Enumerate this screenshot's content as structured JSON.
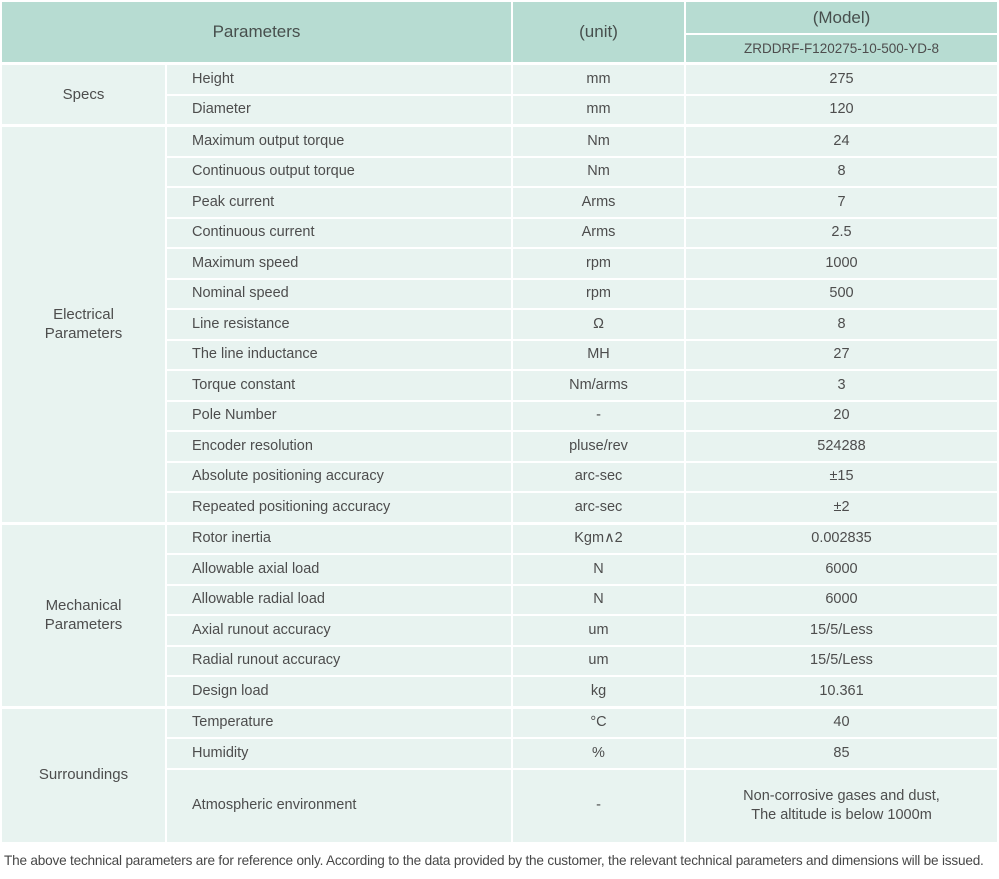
{
  "table": {
    "header": {
      "parameters_label": "Parameters",
      "unit_label": "(unit)",
      "model_label": "(Model)",
      "model_value": "ZRDDRF-F120275-10-500-YD-8"
    },
    "sections": [
      {
        "category": "Specs",
        "rows": [
          {
            "name": "Height",
            "unit": "mm",
            "value": "275"
          },
          {
            "name": "Diameter",
            "unit": "mm",
            "value": "120"
          }
        ]
      },
      {
        "category": "Electrical Parameters",
        "rows": [
          {
            "name": "Maximum output torque",
            "unit": "Nm",
            "value": "24"
          },
          {
            "name": "Continuous output torque",
            "unit": "Nm",
            "value": "8"
          },
          {
            "name": "Peak current",
            "unit": "Arms",
            "value": "7"
          },
          {
            "name": "Continuous current",
            "unit": "Arms",
            "value": "2.5"
          },
          {
            "name": "Maximum speed",
            "unit": "rpm",
            "value": "1000"
          },
          {
            "name": "Nominal speed",
            "unit": "rpm",
            "value": "500"
          },
          {
            "name": "Line resistance",
            "unit": "Ω",
            "value": "8"
          },
          {
            "name": "The line inductance",
            "unit": "MH",
            "value": "27"
          },
          {
            "name": "Torque constant",
            "unit": "Nm/arms",
            "value": "3"
          },
          {
            "name": "Pole Number",
            "unit": "-",
            "value": "20"
          },
          {
            "name": "Encoder resolution",
            "unit": "pluse/rev",
            "value": "524288"
          },
          {
            "name": "Absolute positioning accuracy",
            "unit": "arc-sec",
            "value": "±15"
          },
          {
            "name": "Repeated positioning accuracy",
            "unit": "arc-sec",
            "value": "±2"
          }
        ]
      },
      {
        "category": "Mechanical Parameters",
        "rows": [
          {
            "name": "Rotor inertia",
            "unit": "Kgm∧2",
            "value": "0.002835"
          },
          {
            "name": "Allowable axial load",
            "unit": "N",
            "value": "6000"
          },
          {
            "name": "Allowable radial load",
            "unit": "N",
            "value": "6000"
          },
          {
            "name": "Axial runout accuracy",
            "unit": "um",
            "value": "15/5/Less"
          },
          {
            "name": "Radial runout accuracy",
            "unit": "um",
            "value": "15/5/Less"
          },
          {
            "name": "Design load",
            "unit": "kg",
            "value": "10.361"
          }
        ]
      },
      {
        "category": "Surroundings",
        "rows": [
          {
            "name": "Temperature",
            "unit": "°C",
            "value": "40"
          },
          {
            "name": "Humidity",
            "unit": "%",
            "value": "85"
          },
          {
            "name": "Atmospheric environment",
            "unit": "-",
            "value": "Non-corrosive gases and dust,\nThe altitude is below 1000m"
          }
        ]
      }
    ],
    "footnote": "The above technical parameters are for reference only. According to the data provided by the customer, the relevant technical parameters and dimensions will be issued."
  },
  "colors": {
    "header_bg": "#b7dcd2",
    "row_bg": "#e8f3f0",
    "text": "#4d4d4d"
  }
}
